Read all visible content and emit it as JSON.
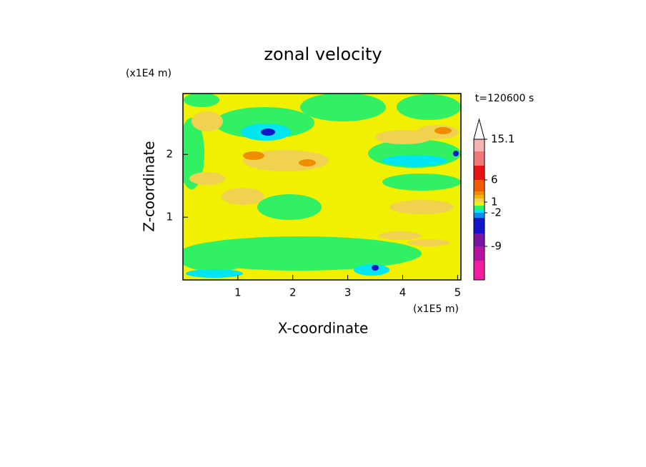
{
  "chart_data": {
    "type": "contour",
    "title": "zonal velocity",
    "x_label": "X-coordinate",
    "y_label": "Z-coordinate",
    "x_unit": "(x1E5 m)",
    "y_unit": "(x1E4 m)",
    "annotation": "t=120600 s",
    "xlim": [
      0,
      5.06
    ],
    "ylim": [
      0,
      2.97
    ],
    "xticks": [
      1,
      2,
      3,
      4,
      5
    ],
    "yticks": [
      1,
      2
    ],
    "background_value": 0.5,
    "field_values": [
      -0.5,
      -0.5,
      -0.5,
      -0.5,
      -0.5,
      -0.5,
      -0.5,
      -0.5,
      -0.5,
      -0.5,
      1.5,
      1.5,
      1.5,
      1.5,
      1.5,
      1.5,
      1.5,
      1.5,
      1.5,
      3.5,
      3.5,
      3.5,
      -1.5,
      -1.5,
      -1.5,
      -1.5,
      -4,
      -4,
      -4
    ],
    "colorbar": {
      "levels": [
        -15,
        -12,
        -9,
        -6,
        -3,
        -2,
        -1,
        0,
        1,
        2,
        3,
        4,
        6,
        9,
        12,
        15.1
      ],
      "colors": [
        "#f01ea0",
        "#b414a0",
        "#7814a0",
        "#1414c8",
        "#0a8cf0",
        "#00e6f0",
        "#32f064",
        "#f0f000",
        "#f0d250",
        "#f0b400",
        "#f08c00",
        "#f05a00",
        "#e61414",
        "#f07878",
        "#f5b4b4"
      ],
      "ticks": [
        15.1,
        6,
        1,
        -2,
        -9
      ]
    }
  }
}
